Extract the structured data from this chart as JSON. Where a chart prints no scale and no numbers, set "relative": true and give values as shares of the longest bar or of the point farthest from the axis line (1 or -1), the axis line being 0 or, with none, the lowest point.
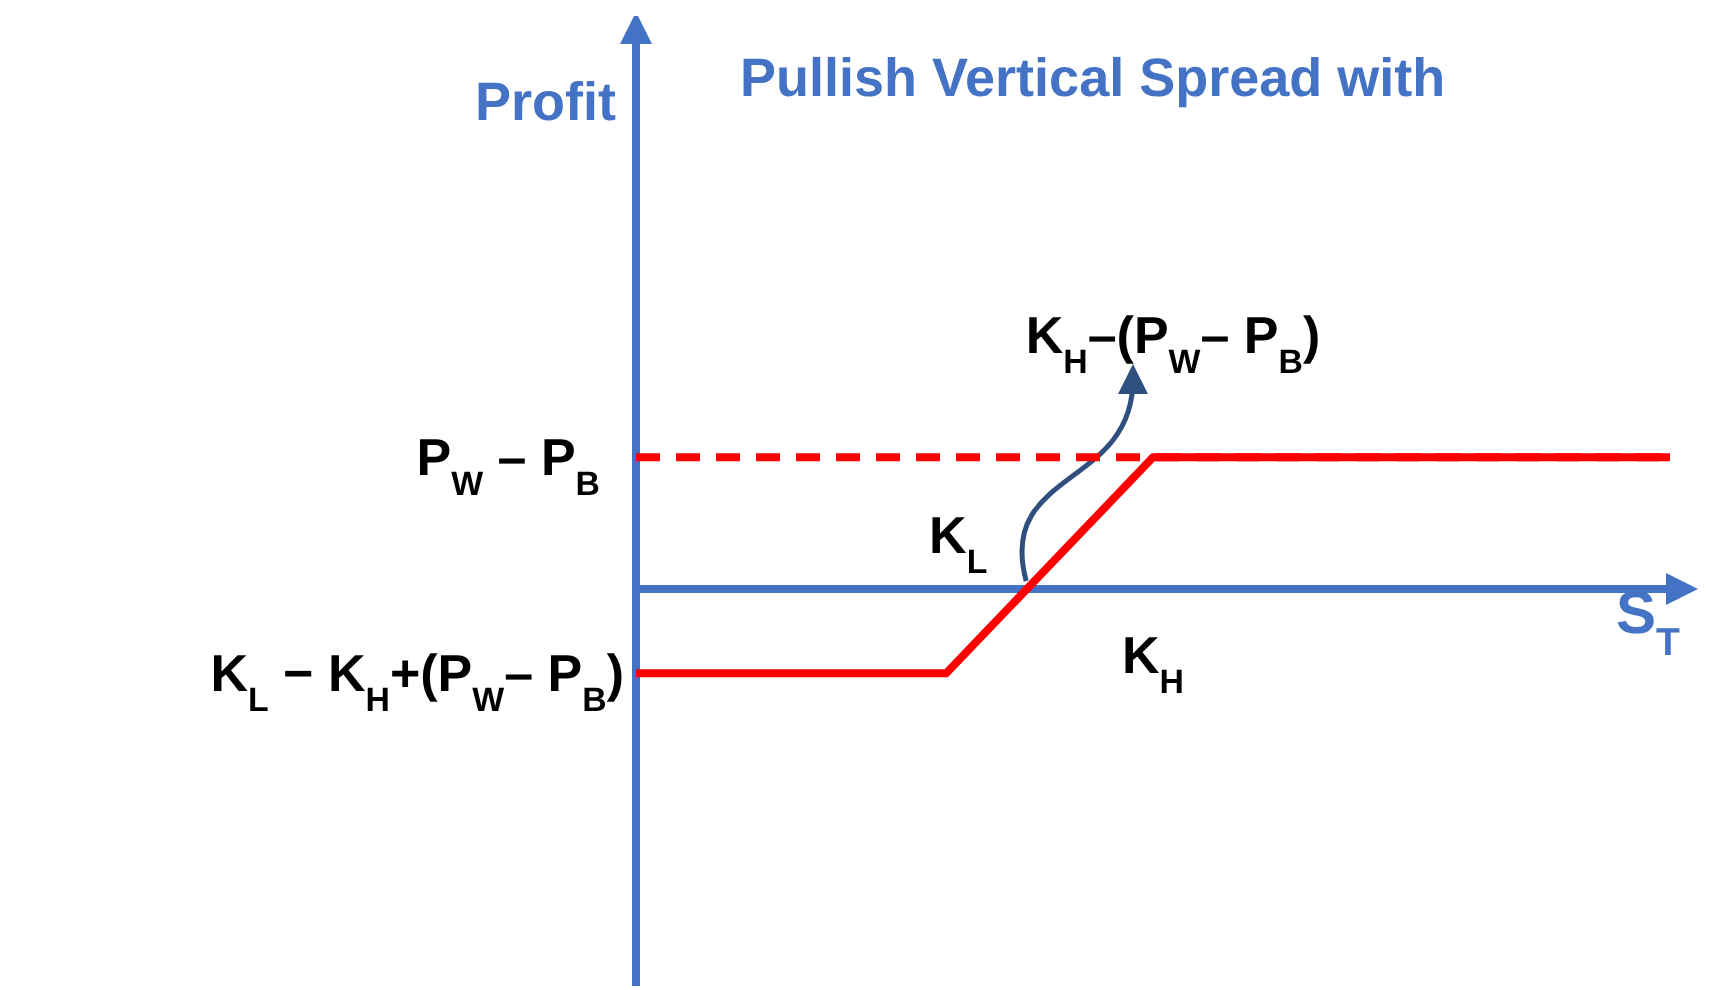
{
  "chart_data": {
    "type": "line",
    "title": "Pullish Vertical Spread with",
    "xlabel": "S$_{T}$",
    "relative": true,
    "categories": [
      null,
      null,
      null,
      "K$_{L}$",
      null,
      "K$_{H}$",
      null,
      null,
      null,
      null,
      null
    ],
    "series": [
      {
        "color": "#ff0000",
        "values": [
          -0.64,
          -0.64,
          -0.64,
          -0.64,
          0.18,
          1,
          1,
          1,
          1,
          1,
          1
        ]
      }
    ],
    "ref_lines": [
      {
        "axis": "y",
        "value": 1,
        "label": "P$_{W}$ – P$_{B}$",
        "color": "#ff0000",
        "line_style": "dashed"
      },
      {
        "axis": "y",
        "value": 0,
        "color": "#4472c4",
        "line_style": "solid"
      }
    ],
    "annotations": [
      "K$_{H}$–(P$_{W}$– P$_{B}$)",
      "K$_{L}$ − K$_{H}$+(P$_{W}$– P$_{B}$)",
      "Profit"
    ]
  }
}
